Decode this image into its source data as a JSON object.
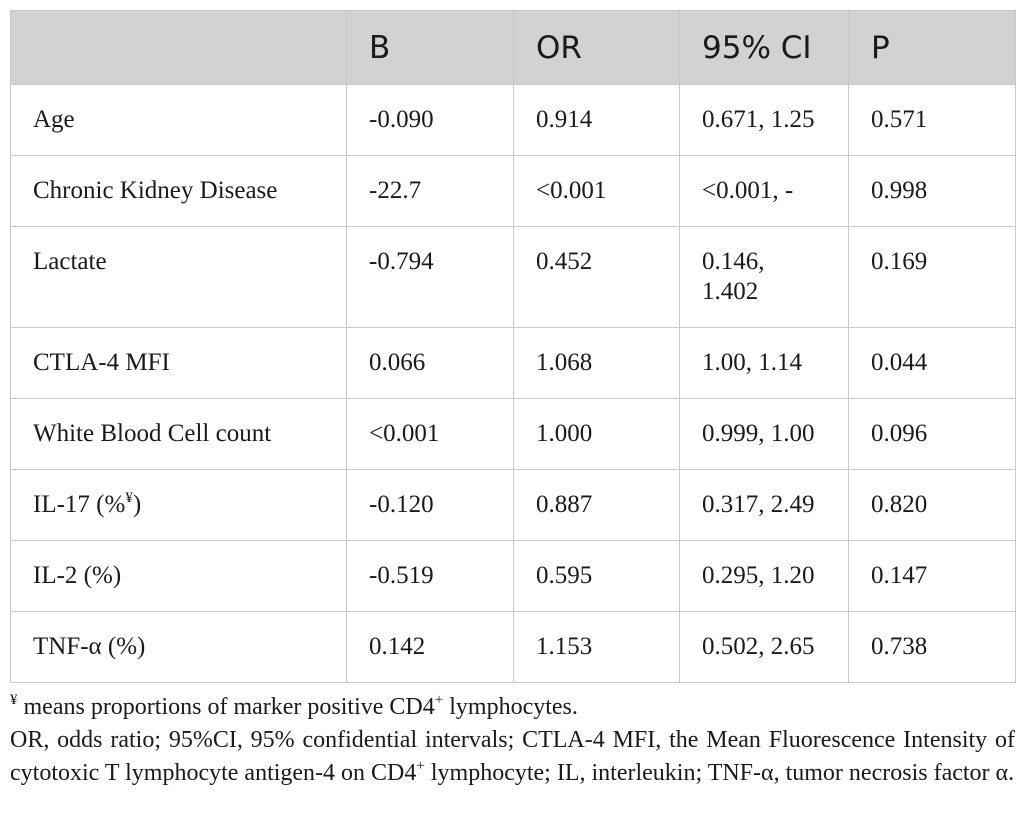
{
  "table": {
    "headers": [
      "",
      "B",
      "OR",
      "95% CI",
      "P"
    ],
    "rows": [
      {
        "label": "Age",
        "b": "-0.090",
        "or": "0.914",
        "ci": "0.671, 1.25",
        "p": "0.571"
      },
      {
        "label": "Chronic Kidney Disease",
        "b": "-22.7",
        "or": "<0.001",
        "ci": "<0.001, -",
        "p": "0.998"
      },
      {
        "label": "Lactate",
        "b": "-0.794",
        "or": "0.452",
        "ci_line1": "0.146,",
        "ci_line2": "1.402",
        "p": "0.169"
      },
      {
        "label": "CTLA-4 MFI",
        "b": "0.066",
        "or": "1.068",
        "ci": "1.00, 1.14",
        "p": "0.044"
      },
      {
        "label": "White Blood Cell count",
        "b": "<0.001",
        "or": "1.000",
        "ci": "0.999, 1.00",
        "p": "0.096"
      },
      {
        "label_pre": "IL-17 (%",
        "label_sup": "¥",
        "label_post": ")",
        "b": "-0.120",
        "or": "0.887",
        "ci": "0.317, 2.49",
        "p": "0.820"
      },
      {
        "label": "IL-2 (%)",
        "b": "-0.519",
        "or": "0.595",
        "ci": "0.295, 1.20",
        "p": "0.147"
      },
      {
        "label": "TNF-α (%)",
        "b": "0.142",
        "or": "1.153",
        "ci": "0.502, 2.65",
        "p": "0.738"
      }
    ]
  },
  "footnotes": {
    "note1_symbol": "¥",
    "note1_text_a": " means proportions of marker positive CD4",
    "note1_sup": "+",
    "note1_text_b": " lymphocytes.",
    "note2_text_a": "OR, odds ratio; 95%CI, 95% confidential intervals; CTLA-4 MFI, the Mean Fluorescence Intensity of cytotoxic T lymphocyte antigen-4 on CD4",
    "note2_sup": "+",
    "note2_text_b": " lymphocyte; IL, interleukin; TNF-α, tumor necrosis factor α."
  }
}
